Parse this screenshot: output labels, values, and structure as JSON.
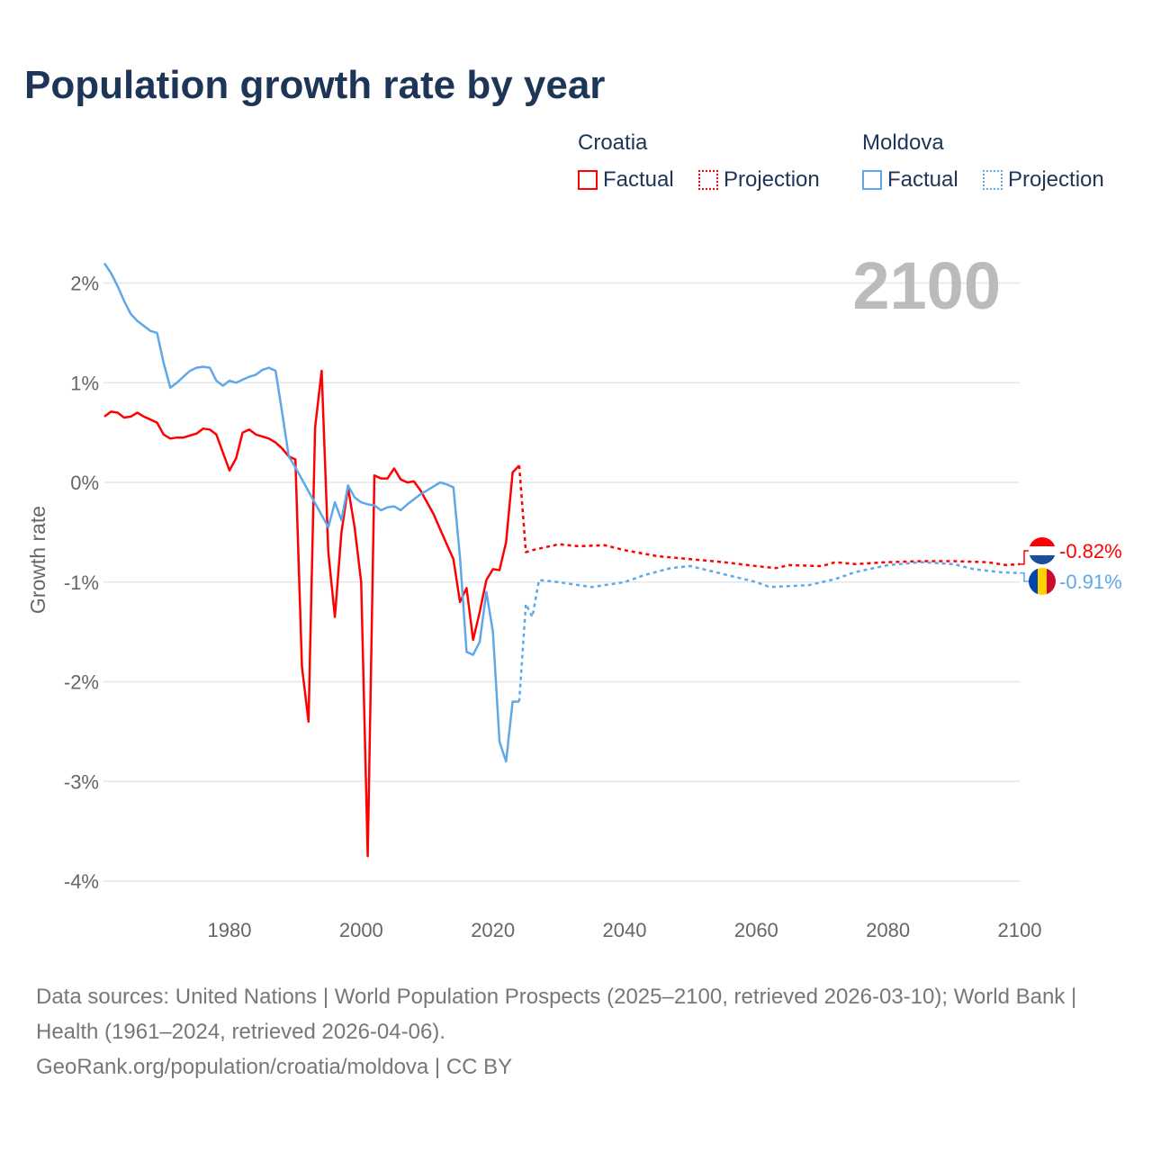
{
  "title": "Population growth rate by year",
  "legend": {
    "groups": [
      {
        "name": "Croatia",
        "color": "#ff0000",
        "items": [
          "Factual",
          "Projection"
        ]
      },
      {
        "name": "Moldova",
        "color": "#5fa8e8",
        "items": [
          "Factual",
          "Projection"
        ]
      }
    ]
  },
  "footer": {
    "sources": "Data sources: United Nations | World Population Prospects (2025–2100, retrieved 2026-03-10); World Bank | Health (1961–2024, retrieved 2026-04-06).",
    "link": "GeoRank.org/population/croatia/moldova | CC BY"
  },
  "chart_data": {
    "type": "line",
    "title": "Population growth rate by year",
    "xlabel": "",
    "ylabel": "Growth rate",
    "xlim": [
      1961,
      2100
    ],
    "ylim": [
      -4.25,
      2.3
    ],
    "xticks": [
      1980,
      2000,
      2020,
      2040,
      2060,
      2080,
      2100
    ],
    "xtick_labels": [
      "1980",
      "2000",
      "2020",
      "2040",
      "2060",
      "2080",
      "2100"
    ],
    "yticks": [
      2,
      1,
      0,
      -1,
      -2,
      -3,
      -4
    ],
    "ytick_labels": [
      "2%",
      "1%",
      "0%",
      "-1%",
      "-2%",
      "-3%",
      "-4%"
    ],
    "year_label": "2100",
    "grid": true,
    "series": [
      {
        "name": "Croatia Factual",
        "color": "#ff0000",
        "dash": false,
        "x": [
          1961,
          1962,
          1963,
          1964,
          1965,
          1966,
          1967,
          1968,
          1969,
          1970,
          1971,
          1972,
          1973,
          1974,
          1975,
          1976,
          1977,
          1978,
          1979,
          1980,
          1981,
          1982,
          1983,
          1984,
          1985,
          1986,
          1987,
          1988,
          1989,
          1990,
          1991,
          1992,
          1993,
          1994,
          1995,
          1996,
          1997,
          1998,
          1999,
          2000,
          2001,
          2002,
          2003,
          2004,
          2005,
          2006,
          2007,
          2008,
          2009,
          2010,
          2011,
          2012,
          2013,
          2014,
          2015,
          2016,
          2017,
          2018,
          2019,
          2020,
          2021,
          2022,
          2023,
          2024
        ],
        "y": [
          0.66,
          0.71,
          0.7,
          0.65,
          0.66,
          0.7,
          0.66,
          0.63,
          0.6,
          0.48,
          0.44,
          0.45,
          0.45,
          0.47,
          0.49,
          0.54,
          0.53,
          0.48,
          0.3,
          0.12,
          0.24,
          0.5,
          0.53,
          0.48,
          0.46,
          0.44,
          0.4,
          0.34,
          0.26,
          0.23,
          -1.85,
          -2.4,
          0.55,
          1.12,
          -0.7,
          -1.35,
          -0.5,
          -0.05,
          -0.45,
          -1.0,
          -3.75,
          0.07,
          0.04,
          0.04,
          0.14,
          0.03,
          0.0,
          0.01,
          -0.08,
          -0.2,
          -0.32,
          -0.47,
          -0.62,
          -0.77,
          -1.2,
          -1.06,
          -1.58,
          -1.3,
          -0.98,
          -0.87,
          -0.88,
          -0.6,
          0.1,
          0.17
        ]
      },
      {
        "name": "Croatia Projection",
        "color": "#ff0000",
        "dash": true,
        "x": [
          2024,
          2025,
          2026,
          2028,
          2030,
          2033,
          2037,
          2040,
          2045,
          2050,
          2055,
          2060,
          2063,
          2065,
          2070,
          2072,
          2075,
          2080,
          2085,
          2090,
          2095,
          2098,
          2100
        ],
        "y": [
          0.17,
          -0.7,
          -0.68,
          -0.65,
          -0.62,
          -0.64,
          -0.63,
          -0.68,
          -0.74,
          -0.77,
          -0.8,
          -0.84,
          -0.86,
          -0.83,
          -0.84,
          -0.8,
          -0.82,
          -0.8,
          -0.79,
          -0.79,
          -0.8,
          -0.83,
          -0.82
        ]
      },
      {
        "name": "Moldova Factual",
        "color": "#5fa8e8",
        "dash": false,
        "x": [
          1961,
          1962,
          1963,
          1964,
          1965,
          1966,
          1967,
          1968,
          1969,
          1970,
          1971,
          1972,
          1973,
          1974,
          1975,
          1976,
          1977,
          1978,
          1979,
          1980,
          1981,
          1982,
          1983,
          1984,
          1985,
          1986,
          1987,
          1988,
          1989,
          1990,
          1995,
          1996,
          1997,
          1998,
          1999,
          2000,
          2001,
          2002,
          2003,
          2004,
          2005,
          2006,
          2007,
          2008,
          2009,
          2010,
          2011,
          2012,
          2013,
          2014,
          2015,
          2016,
          2017,
          2018,
          2019,
          2020,
          2021,
          2022,
          2023,
          2024
        ],
        "y": [
          2.2,
          2.1,
          1.97,
          1.82,
          1.69,
          1.62,
          1.57,
          1.52,
          1.5,
          1.2,
          0.95,
          1.0,
          1.06,
          1.12,
          1.15,
          1.16,
          1.15,
          1.02,
          0.97,
          1.02,
          1.0,
          1.03,
          1.06,
          1.08,
          1.13,
          1.15,
          1.12,
          0.7,
          0.26,
          0.15,
          -0.45,
          -0.2,
          -0.38,
          -0.03,
          -0.15,
          -0.2,
          -0.22,
          -0.23,
          -0.28,
          -0.25,
          -0.24,
          -0.28,
          -0.22,
          -0.17,
          -0.12,
          -0.08,
          -0.04,
          0.0,
          -0.02,
          -0.05,
          -0.75,
          -1.7,
          -1.73,
          -1.6,
          -1.1,
          -1.5,
          -2.6,
          -2.8,
          -2.2,
          -2.2
        ]
      },
      {
        "name": "Moldova Projection",
        "color": "#5fa8e8",
        "dash": true,
        "x": [
          2024,
          2025,
          2026,
          2027,
          2030,
          2035,
          2040,
          2043,
          2047,
          2050,
          2055,
          2060,
          2062,
          2068,
          2072,
          2075,
          2080,
          2085,
          2090,
          2093,
          2097,
          2100
        ],
        "y": [
          -2.2,
          -1.22,
          -1.35,
          -0.98,
          -1.0,
          -1.05,
          -1.0,
          -0.93,
          -0.86,
          -0.84,
          -0.92,
          -1.0,
          -1.05,
          -1.03,
          -0.97,
          -0.9,
          -0.83,
          -0.8,
          -0.82,
          -0.87,
          -0.9,
          -0.91
        ]
      }
    ],
    "end_labels": [
      {
        "country": "Croatia",
        "text": "-0.82%",
        "value": -0.82,
        "color": "#ff0000"
      },
      {
        "country": "Moldova",
        "text": "-0.91%",
        "value": -0.91,
        "color": "#5fa8e8"
      }
    ]
  }
}
